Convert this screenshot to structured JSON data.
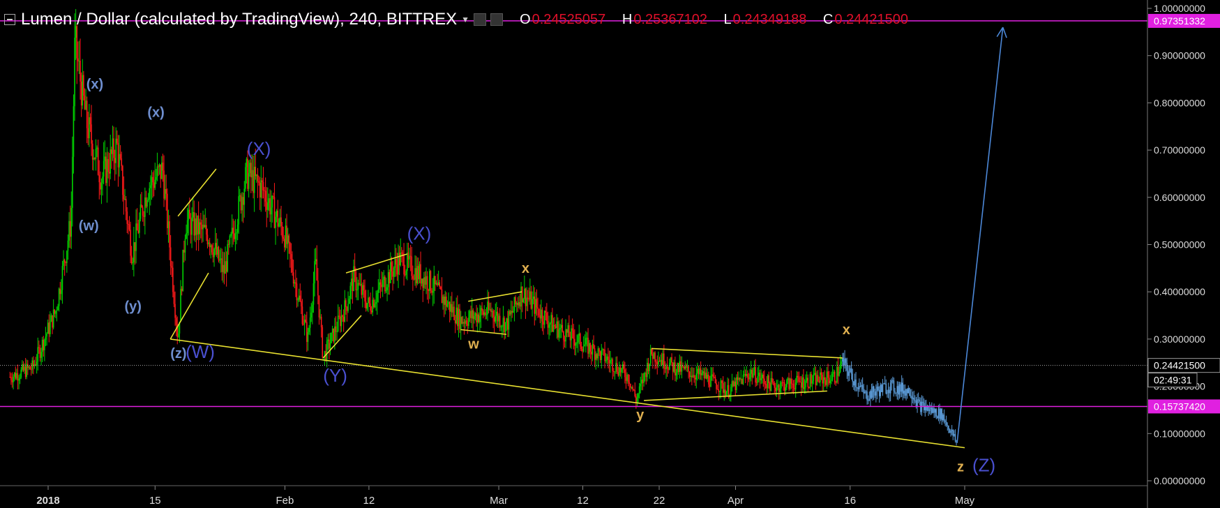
{
  "header": {
    "title": "Lumen / Dollar (calculated by TradingView), 240, BITTREX",
    "ohlc": {
      "o_label": "O",
      "o": "0.24525057",
      "h_label": "H",
      "h": "0.25367102",
      "l_label": "L",
      "l": "0.24349188",
      "c_label": "C",
      "c": "0.24421500"
    }
  },
  "chart_data": {
    "type": "candlestick",
    "ylim": [
      0.0,
      1.0
    ],
    "y_ticks": [
      "1.00000000",
      "0.90000000",
      "0.80000000",
      "0.70000000",
      "0.60000000",
      "0.50000000",
      "0.40000000",
      "0.30000000",
      "0.20000000",
      "0.10000000",
      "0.00000000"
    ],
    "x_ticks": [
      {
        "label": "2018",
        "date": "2018-01-01"
      },
      {
        "label": "15",
        "date": "2018-01-15"
      },
      {
        "label": "Feb",
        "date": "2018-02-01"
      },
      {
        "label": "12",
        "date": "2018-02-12"
      },
      {
        "label": "Mar",
        "date": "2018-03-01"
      },
      {
        "label": "12",
        "date": "2018-03-12"
      },
      {
        "label": "22",
        "date": "2018-03-22"
      },
      {
        "label": "Apr",
        "date": "2018-04-01"
      },
      {
        "label": "16",
        "date": "2018-04-16"
      },
      {
        "label": "May",
        "date": "2018-05-01"
      }
    ],
    "price_path": [
      [
        "2017-12-27",
        0.22
      ],
      [
        "2017-12-30",
        0.24
      ],
      [
        "2018-01-02",
        0.36
      ],
      [
        "2018-01-04",
        0.55
      ],
      [
        "2018-01-04T12:00",
        0.93
      ],
      [
        "2018-01-06",
        0.76
      ],
      [
        "2018-01-08",
        0.64
      ],
      [
        "2018-01-10",
        0.71
      ],
      [
        "2018-01-12",
        0.48
      ],
      [
        "2018-01-14",
        0.62
      ],
      [
        "2018-01-16",
        0.66
      ],
      [
        "2018-01-18",
        0.3
      ],
      [
        "2018-01-19",
        0.55
      ],
      [
        "2018-01-22",
        0.52
      ],
      [
        "2018-01-24",
        0.44
      ],
      [
        "2018-01-27",
        0.65
      ],
      [
        "2018-01-29",
        0.62
      ],
      [
        "2018-02-01",
        0.52
      ],
      [
        "2018-02-04",
        0.3
      ],
      [
        "2018-02-05",
        0.46
      ],
      [
        "2018-02-06",
        0.26
      ],
      [
        "2018-02-09",
        0.37
      ],
      [
        "2018-02-10",
        0.43
      ],
      [
        "2018-02-12",
        0.37
      ],
      [
        "2018-02-16",
        0.47
      ],
      [
        "2018-02-20",
        0.42
      ],
      [
        "2018-02-24",
        0.34
      ],
      [
        "2018-02-28",
        0.36
      ],
      [
        "2018-03-02",
        0.33
      ],
      [
        "2018-03-04",
        0.4
      ],
      [
        "2018-03-08",
        0.33
      ],
      [
        "2018-03-12",
        0.29
      ],
      [
        "2018-03-15",
        0.26
      ],
      [
        "2018-03-18",
        0.22
      ],
      [
        "2018-03-19",
        0.17
      ],
      [
        "2018-03-21",
        0.27
      ],
      [
        "2018-03-24",
        0.24
      ],
      [
        "2018-03-28",
        0.22
      ],
      [
        "2018-03-31",
        0.19
      ],
      [
        "2018-04-03",
        0.23
      ],
      [
        "2018-04-06",
        0.2
      ],
      [
        "2018-04-10",
        0.21
      ],
      [
        "2018-04-14",
        0.22
      ],
      [
        "2018-04-15",
        0.25
      ],
      [
        "2018-04-18",
        0.18
      ],
      [
        "2018-04-21",
        0.2
      ],
      [
        "2018-04-24",
        0.19
      ],
      [
        "2018-04-25",
        0.16
      ],
      [
        "2018-04-28",
        0.14
      ],
      [
        "2018-04-30",
        0.08
      ]
    ],
    "projection": {
      "from": [
        "2018-04-30",
        0.08
      ],
      "to": [
        "2018-05-06",
        0.96
      ]
    },
    "hlines": [
      {
        "value": 0.97351332,
        "label": "0.97351332",
        "color": "#e020e0"
      },
      {
        "value": 0.1573742,
        "label": "0.15737420",
        "color": "#e020e0"
      }
    ],
    "last_price": {
      "value": 0.244215,
      "label": "0.24421500",
      "countdown": "02:49:31"
    },
    "trendlines": [
      {
        "from": [
          "2018-01-17",
          0.3
        ],
        "to": [
          "2018-05-01",
          0.07
        ]
      },
      {
        "from": [
          "2018-01-17",
          0.3
        ],
        "to": [
          "2018-01-22",
          0.44
        ]
      },
      {
        "from": [
          "2018-01-18",
          0.56
        ],
        "to": [
          "2018-01-23",
          0.66
        ]
      },
      {
        "from": [
          "2018-02-06",
          0.26
        ],
        "to": [
          "2018-02-11",
          0.35
        ]
      },
      {
        "from": [
          "2018-02-09",
          0.44
        ],
        "to": [
          "2018-02-17",
          0.48
        ]
      },
      {
        "from": [
          "2018-02-24",
          0.32
        ],
        "to": [
          "2018-03-02",
          0.31
        ]
      },
      {
        "from": [
          "2018-02-25",
          0.38
        ],
        "to": [
          "2018-03-04",
          0.4
        ]
      },
      {
        "from": [
          "2018-03-20",
          0.17
        ],
        "to": [
          "2018-04-13",
          0.19
        ]
      },
      {
        "from": [
          "2018-03-21",
          0.28
        ],
        "to": [
          "2018-04-15",
          0.26
        ]
      }
    ],
    "annotations": [
      {
        "text": "(x)",
        "date": "2018-01-06",
        "value": 0.83,
        "color": "#6f8fd0",
        "size": 20
      },
      {
        "text": "(x)",
        "date": "2018-01-14",
        "value": 0.77,
        "color": "#6f8fd0",
        "size": 20
      },
      {
        "text": "(w)",
        "date": "2018-01-05",
        "value": 0.53,
        "color": "#6f8fd0",
        "size": 20
      },
      {
        "text": "(y)",
        "date": "2018-01-11",
        "value": 0.36,
        "color": "#6f8fd0",
        "size": 20
      },
      {
        "text": "(z)",
        "date": "2018-01-17",
        "value": 0.26,
        "color": "#6f8fd0",
        "size": 20
      },
      {
        "text": "(W)",
        "date": "2018-01-19",
        "value": 0.26,
        "color": "#4a50d0",
        "size": 26
      },
      {
        "text": "(X)",
        "date": "2018-01-27",
        "value": 0.69,
        "color": "#4a50d0",
        "size": 26
      },
      {
        "text": "(Y)",
        "date": "2018-02-06",
        "value": 0.21,
        "color": "#4a50d0",
        "size": 26
      },
      {
        "text": "(X)",
        "date": "2018-02-17",
        "value": 0.51,
        "color": "#4a50d0",
        "size": 26
      },
      {
        "text": "w",
        "date": "2018-02-25",
        "value": 0.28,
        "color": "#e0b050",
        "size": 20
      },
      {
        "text": "x",
        "date": "2018-03-04",
        "value": 0.44,
        "color": "#e0b050",
        "size": 20
      },
      {
        "text": "y",
        "date": "2018-03-19",
        "value": 0.13,
        "color": "#e0b050",
        "size": 20
      },
      {
        "text": "x",
        "date": "2018-04-15",
        "value": 0.31,
        "color": "#e0b050",
        "size": 20
      },
      {
        "text": "z",
        "date": "2018-04-30",
        "value": 0.02,
        "color": "#e0b050",
        "size": 20
      },
      {
        "text": "(Z)",
        "date": "2018-05-02",
        "value": 0.02,
        "color": "#4a50d0",
        "size": 26
      }
    ]
  }
}
